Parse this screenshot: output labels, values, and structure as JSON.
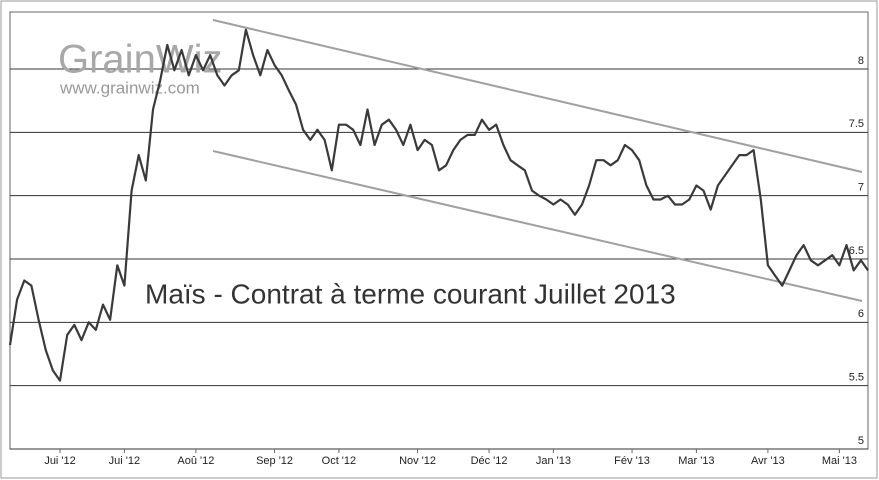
{
  "chart_data": {
    "type": "line",
    "title": "Maïs - Contrat à terme courant Juillet 2013",
    "watermark": "GrainWiz",
    "watermark_url": "www.grainwiz.com",
    "color": "#3a3a3a",
    "grid": true,
    "ylim": [
      5,
      8.45
    ],
    "yticks": [
      5,
      5.5,
      6,
      6.5,
      7,
      7.5,
      8
    ],
    "categories": [
      null,
      null,
      null,
      null,
      null,
      null,
      null,
      "Jui '12",
      null,
      null,
      null,
      null,
      null,
      null,
      null,
      null,
      "Jui '12",
      null,
      null,
      null,
      null,
      null,
      null,
      null,
      null,
      null,
      "Aoû '12",
      null,
      null,
      null,
      null,
      null,
      null,
      null,
      null,
      null,
      null,
      "Sep '12",
      null,
      null,
      null,
      null,
      null,
      null,
      null,
      null,
      "Oct '12",
      null,
      null,
      null,
      null,
      null,
      null,
      null,
      null,
      null,
      null,
      "Nov '12",
      null,
      null,
      null,
      null,
      null,
      null,
      null,
      null,
      null,
      "Déc '12",
      null,
      null,
      null,
      null,
      null,
      null,
      null,
      null,
      "Jan '13",
      null,
      null,
      null,
      null,
      null,
      null,
      null,
      null,
      null,
      null,
      "Fév '13",
      null,
      null,
      null,
      null,
      null,
      null,
      null,
      null,
      "Mar '13",
      null,
      null,
      null,
      null,
      null,
      null,
      null,
      null,
      null,
      "Avr '13",
      null,
      null,
      null,
      null,
      null,
      null,
      null,
      null,
      null,
      "Mai '13",
      null,
      null,
      null,
      null
    ],
    "values": [
      5.82,
      6.18,
      6.33,
      6.29,
      6.02,
      5.78,
      5.62,
      5.54,
      5.9,
      5.98,
      5.86,
      6.0,
      5.94,
      6.14,
      6.02,
      6.45,
      6.29,
      7.04,
      7.32,
      7.12,
      7.68,
      7.91,
      8.19,
      7.99,
      8.15,
      7.95,
      8.11,
      7.99,
      8.11,
      7.95,
      7.87,
      7.95,
      7.99,
      8.31,
      8.11,
      7.95,
      8.15,
      8.03,
      7.95,
      7.83,
      7.72,
      7.52,
      7.44,
      7.52,
      7.44,
      7.2,
      7.56,
      7.56,
      7.52,
      7.4,
      7.68,
      7.4,
      7.56,
      7.6,
      7.52,
      7.4,
      7.56,
      7.36,
      7.44,
      7.4,
      7.2,
      7.24,
      7.36,
      7.44,
      7.48,
      7.48,
      7.6,
      7.52,
      7.56,
      7.4,
      7.28,
      7.24,
      7.2,
      7.04,
      7.0,
      6.97,
      6.93,
      6.97,
      6.93,
      6.85,
      6.93,
      7.08,
      7.28,
      7.28,
      7.24,
      7.28,
      7.4,
      7.36,
      7.28,
      7.08,
      6.97,
      6.97,
      7.0,
      6.93,
      6.93,
      6.97,
      7.08,
      7.04,
      6.89,
      7.08,
      7.16,
      7.24,
      7.32,
      7.32,
      7.36,
      6.97,
      6.45,
      6.37,
      6.29,
      6.41,
      6.53,
      6.61,
      6.49,
      6.45,
      6.49,
      6.53,
      6.45,
      6.61,
      6.41,
      6.49,
      6.41
    ]
  }
}
